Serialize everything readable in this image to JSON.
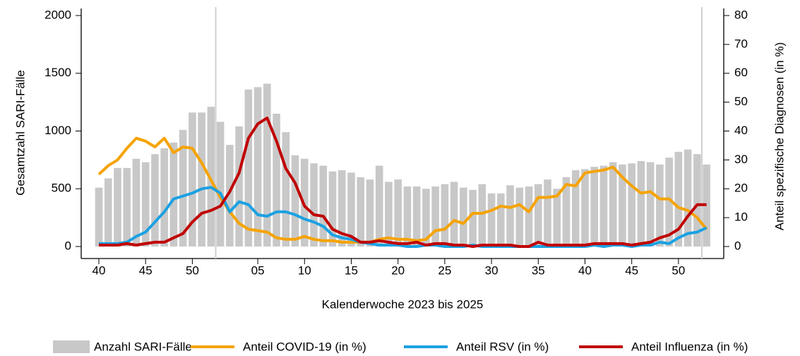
{
  "chart_data": {
    "type": "combo",
    "x_label": "Kalenderwoche 2023 bis 2025",
    "y_label": "Gesamtzahl SARI-Fälle",
    "y2_label": "Anteil spezifische Diagnosen (in %)",
    "categories": [
      "40",
      null,
      null,
      null,
      null,
      "45",
      null,
      null,
      null,
      null,
      "50",
      null,
      null,
      null,
      null,
      null,
      null,
      "05",
      null,
      null,
      null,
      null,
      "10",
      null,
      null,
      null,
      null,
      "15",
      null,
      null,
      null,
      null,
      "20",
      null,
      null,
      null,
      null,
      "25",
      null,
      null,
      null,
      null,
      "30",
      null,
      null,
      null,
      null,
      "35",
      null,
      null,
      null,
      null,
      "40",
      null,
      null,
      null,
      null,
      "45",
      null,
      null,
      null,
      null,
      "50",
      null,
      null,
      null
    ],
    "ylim": [
      0,
      2000
    ],
    "yticks": [
      0,
      500,
      1000,
      1500,
      2000
    ],
    "y2lim": [
      0,
      80
    ],
    "y2ticks": [
      0,
      10,
      20,
      30,
      40,
      50,
      60,
      70,
      80
    ],
    "series": [
      {
        "name": "Anzahl SARI-Fälle",
        "type": "bar",
        "color": "#c8c8c8",
        "values": [
          510,
          590,
          680,
          680,
          760,
          730,
          800,
          850,
          900,
          1010,
          1160,
          1160,
          1210,
          1080,
          880,
          1040,
          1360,
          1380,
          1410,
          1150,
          990,
          790,
          760,
          720,
          700,
          650,
          660,
          640,
          600,
          580,
          700,
          560,
          580,
          520,
          520,
          500,
          520,
          540,
          560,
          510,
          490,
          540,
          460,
          460,
          530,
          510,
          520,
          540,
          580,
          500,
          600,
          660,
          670,
          690,
          700,
          730,
          710,
          720,
          740,
          730,
          710,
          770,
          820,
          840,
          800,
          710
        ]
      },
      {
        "name": "Anteil COVID-19 (in %)",
        "type": "line",
        "axis": "y2",
        "color": "#f5a300",
        "values": [
          25,
          28,
          30,
          34,
          37.5,
          36.5,
          34.5,
          37.5,
          32.5,
          34.5,
          34,
          29,
          23,
          17,
          12,
          8,
          6,
          5.5,
          5,
          3,
          2.5,
          2.5,
          3.5,
          2.5,
          2,
          2,
          1.5,
          1.5,
          1.5,
          1.5,
          2.5,
          3,
          2.5,
          2.5,
          2,
          2.5,
          5.5,
          6,
          9,
          8,
          11.5,
          11.5,
          12.5,
          14,
          13.5,
          14.5,
          12,
          17,
          17,
          17.5,
          21.5,
          21,
          25.5,
          26,
          26.5,
          27.5,
          24,
          21,
          18.5,
          19,
          16.5,
          16.5,
          13.5,
          12.5,
          10,
          6
        ]
      },
      {
        "name": "Anteil RSV (in %)",
        "type": "line",
        "axis": "y2",
        "color": "#1ba1e2",
        "values": [
          1,
          1,
          1,
          1.5,
          3.5,
          5,
          8.5,
          12,
          16.5,
          17.5,
          18.5,
          20,
          20.5,
          18.5,
          12,
          15.5,
          14.5,
          11,
          10.5,
          12,
          12,
          11,
          9.5,
          8.5,
          7,
          4,
          3,
          2.5,
          1.5,
          1,
          0.5,
          0.5,
          0.5,
          0,
          0,
          0.5,
          0.5,
          0,
          0,
          0,
          0.5,
          0,
          0,
          0,
          0,
          0,
          0,
          0,
          0,
          0,
          0,
          0,
          0,
          0.5,
          0,
          0.5,
          0.5,
          0,
          0.5,
          0.5,
          1.5,
          1,
          3,
          4.5,
          5,
          6.5
        ]
      },
      {
        "name": "Anteil Influenza (in %)",
        "type": "line",
        "axis": "y2",
        "color": "#c00000",
        "values": [
          0.5,
          0.5,
          0.5,
          1,
          0.5,
          1,
          1.5,
          1.5,
          3,
          4.5,
          8.5,
          11.5,
          12.5,
          14,
          19,
          25.5,
          37.5,
          42.5,
          44.5,
          36.5,
          27,
          22,
          14,
          11,
          10.5,
          6,
          4.5,
          3.5,
          1.5,
          1.5,
          2,
          1.5,
          1,
          1,
          1.5,
          0.5,
          1,
          1,
          0.5,
          0.5,
          0,
          0.5,
          0.5,
          0.5,
          0.5,
          0,
          0,
          1.5,
          0.5,
          0.5,
          0.5,
          0.5,
          0.5,
          1,
          1,
          1,
          1,
          0.5,
          1,
          1.5,
          3,
          4,
          6,
          10.5,
          14.5,
          14.5
        ]
      }
    ]
  }
}
